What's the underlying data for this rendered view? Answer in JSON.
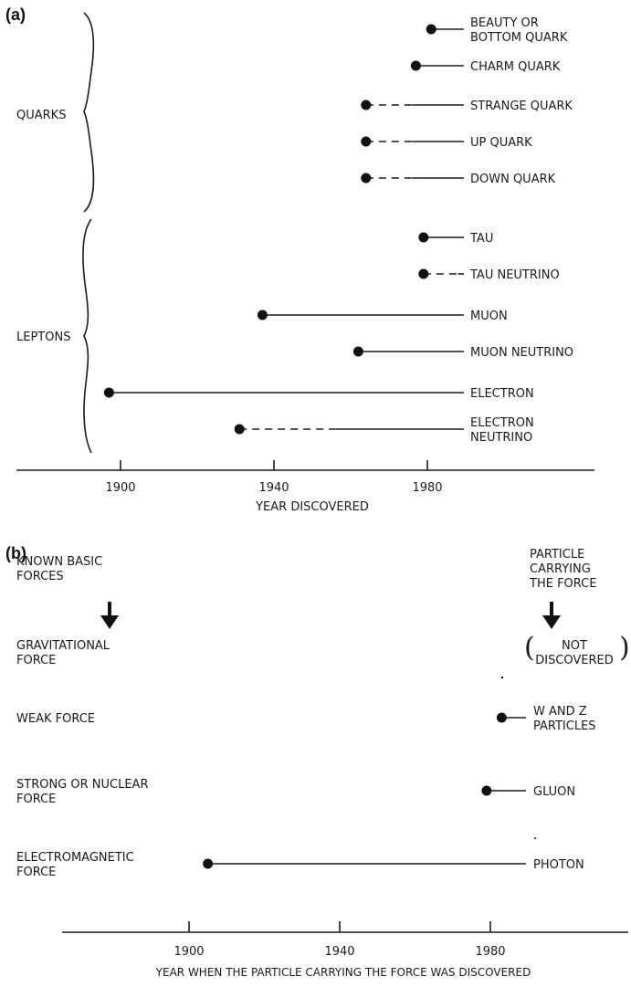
{
  "chart_data": [
    {
      "panel": "(a)",
      "type": "timeline",
      "groups": [
        {
          "name": "QUARKS",
          "items": [
            {
              "label": [
                "BEAUTY OR",
                "BOTTOM QUARK"
              ],
              "year": 1981,
              "dashed_until": null
            },
            {
              "label": [
                "CHARM QUARK"
              ],
              "year": 1977,
              "dashed_until": null
            },
            {
              "label": [
                "STRANGE QUARK"
              ],
              "year": 1964,
              "dashed_until": 1976
            },
            {
              "label": [
                "UP QUARK"
              ],
              "year": 1964,
              "dashed_until": 1976
            },
            {
              "label": [
                "DOWN QUARK"
              ],
              "year": 1964,
              "dashed_until": 1976
            }
          ]
        },
        {
          "name": "LEPTONS",
          "items": [
            {
              "label": [
                "TAU"
              ],
              "year": 1979,
              "dashed_until": null
            },
            {
              "label": [
                "TAU NEUTRINO"
              ],
              "year": 1979,
              "dashed_until": 1988
            },
            {
              "label": [
                "MUON"
              ],
              "year": 1937,
              "dashed_until": null
            },
            {
              "label": [
                "MUON NEUTRINO"
              ],
              "year": 1962,
              "dashed_until": null
            },
            {
              "label": [
                "ELECTRON"
              ],
              "year": 1897,
              "dashed_until": null
            },
            {
              "label": [
                "ELECTRON",
                "NEUTRINO"
              ],
              "year": 1931,
              "dashed_until": 1956
            }
          ]
        }
      ],
      "xticks": [
        "1900",
        "1940",
        "1980"
      ],
      "xlim": [
        1870,
        2030
      ],
      "xlabel": "YEAR DISCOVERED"
    },
    {
      "panel": "(b)",
      "type": "timeline",
      "left_header": [
        "KNOWN BASIC",
        "FORCES"
      ],
      "right_header": [
        "PARTICLE",
        "CARRYING",
        "THE FORCE"
      ],
      "rows": [
        {
          "force": [
            "GRAVITATIONAL",
            "FORCE"
          ],
          "particle": [
            "NOT",
            "DISCOVERED"
          ],
          "year": null
        },
        {
          "force": [
            "WEAK FORCE"
          ],
          "particle": [
            "W AND Z",
            "PARTICLES"
          ],
          "year": 1983
        },
        {
          "force": [
            "STRONG OR NUCLEAR",
            "FORCE"
          ],
          "particle": [
            "GLUON"
          ],
          "year": 1979
        },
        {
          "force": [
            "ELECTROMAGNETIC",
            "FORCE"
          ],
          "particle": [
            "PHOTON"
          ],
          "year": 1905
        }
      ],
      "xticks": [
        "1900",
        "1940",
        "1980"
      ],
      "xlim": [
        1850,
        2020
      ],
      "xlabel": "YEAR WHEN THE PARTICLE CARRYING THE FORCE WAS DISCOVERED"
    }
  ]
}
